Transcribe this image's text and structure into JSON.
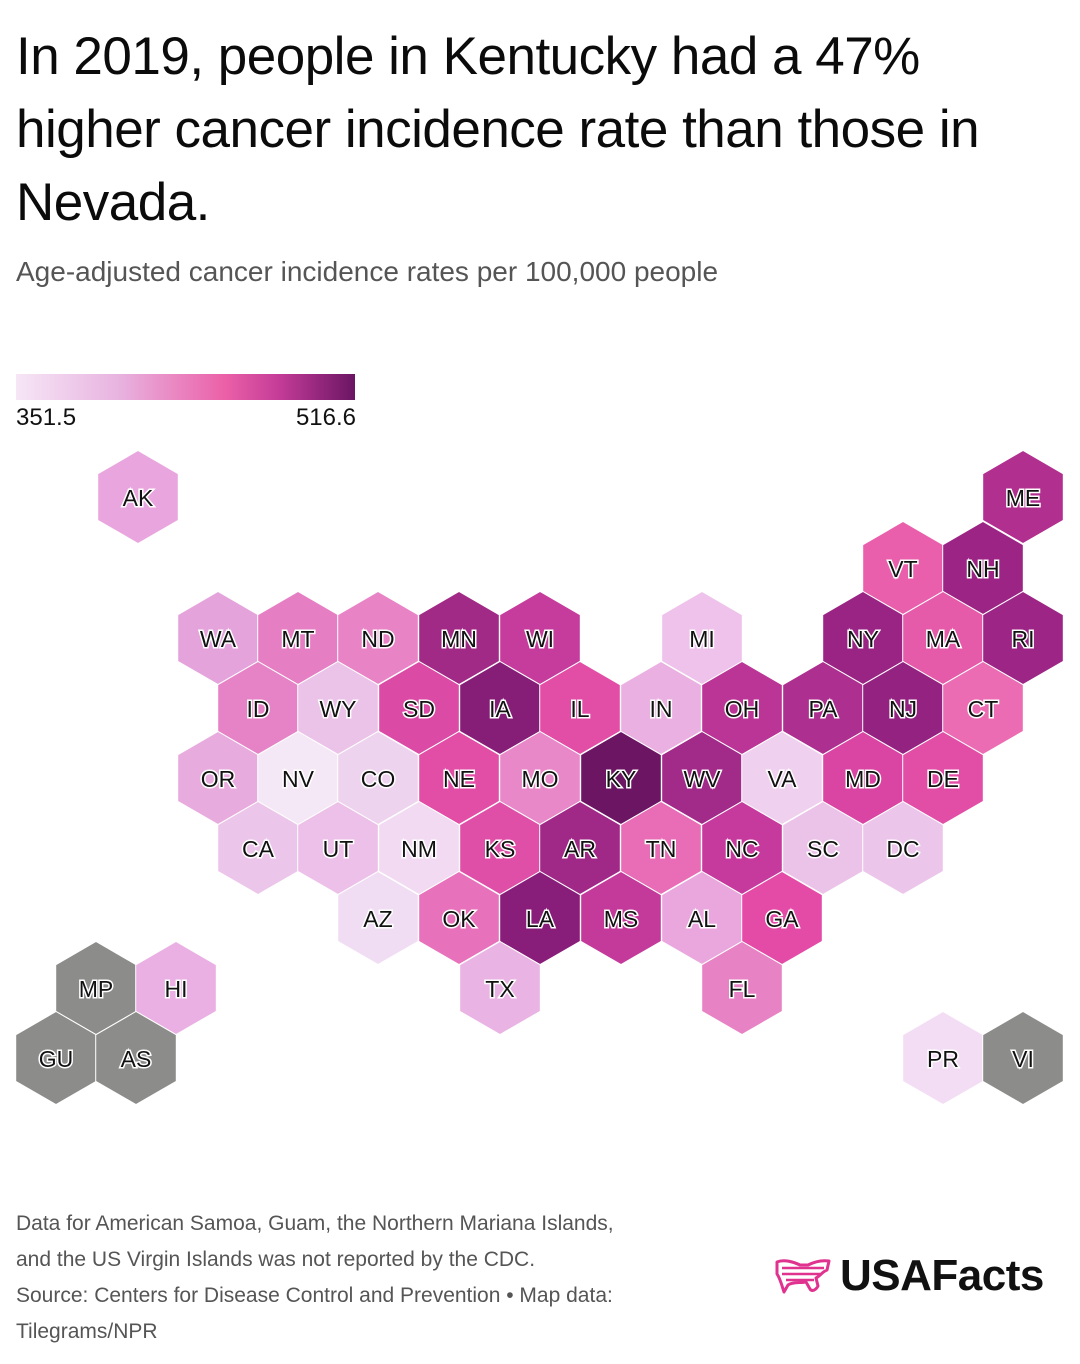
{
  "title": "In 2019, people in Kentucky had a 47% higher cancer incidence rate than those in Nevada.",
  "subtitle": "Age-adjusted cancer incidence rates per 100,000 people",
  "legend": {
    "min": "351.5",
    "max": "516.6",
    "scale_colors": [
      "#f6e6f6",
      "#e8b4e0",
      "#eb5fa7",
      "#c23b97",
      "#6b1563"
    ]
  },
  "map": {
    "no_data_color": "#8c8c8a",
    "states": [
      {
        "code": "AK",
        "color": "#e9a6de"
      },
      {
        "code": "ME",
        "color": "#b12f8f"
      },
      {
        "code": "VT",
        "color": "#ea5fab"
      },
      {
        "code": "NH",
        "color": "#9c2484"
      },
      {
        "code": "WA",
        "color": "#e5a3dc"
      },
      {
        "code": "MT",
        "color": "#e67ec3"
      },
      {
        "code": "ND",
        "color": "#e883c6"
      },
      {
        "code": "MN",
        "color": "#a12a87"
      },
      {
        "code": "WI",
        "color": "#c63c9d"
      },
      {
        "code": "MI",
        "color": "#eec2ea"
      },
      {
        "code": "NY",
        "color": "#9a2484"
      },
      {
        "code": "MA",
        "color": "#e65ba9"
      },
      {
        "code": "RI",
        "color": "#9c2585"
      },
      {
        "code": "ID",
        "color": "#e683c6"
      },
      {
        "code": "WY",
        "color": "#ecc3e8"
      },
      {
        "code": "SD",
        "color": "#db4aa5"
      },
      {
        "code": "IA",
        "color": "#861e77"
      },
      {
        "code": "IL",
        "color": "#e24ea6"
      },
      {
        "code": "IN",
        "color": "#eab0e1"
      },
      {
        "code": "OH",
        "color": "#ba3596"
      },
      {
        "code": "PA",
        "color": "#ad2f8f"
      },
      {
        "code": "NJ",
        "color": "#932281"
      },
      {
        "code": "CT",
        "color": "#eb6cb3"
      },
      {
        "code": "OR",
        "color": "#e8abde"
      },
      {
        "code": "NV",
        "color": "#f5e8f6"
      },
      {
        "code": "CO",
        "color": "#eed3ee"
      },
      {
        "code": "NE",
        "color": "#e24ea6"
      },
      {
        "code": "MO",
        "color": "#e888c8"
      },
      {
        "code": "KY",
        "color": "#6b1563"
      },
      {
        "code": "WV",
        "color": "#a22a89"
      },
      {
        "code": "VA",
        "color": "#efd0ee"
      },
      {
        "code": "MD",
        "color": "#da44a2"
      },
      {
        "code": "DE",
        "color": "#e24ea6"
      },
      {
        "code": "CA",
        "color": "#ecc6ea"
      },
      {
        "code": "UT",
        "color": "#ecc0e8"
      },
      {
        "code": "NM",
        "color": "#f2dbf2"
      },
      {
        "code": "KS",
        "color": "#e04fa7"
      },
      {
        "code": "AR",
        "color": "#a02887"
      },
      {
        "code": "TN",
        "color": "#e86db6"
      },
      {
        "code": "NC",
        "color": "#c73a9d"
      },
      {
        "code": "SC",
        "color": "#ecc3e8"
      },
      {
        "code": "DC",
        "color": "#ecc6ea"
      },
      {
        "code": "AZ",
        "color": "#f1ddf3"
      },
      {
        "code": "OK",
        "color": "#e772bb"
      },
      {
        "code": "LA",
        "color": "#881e79"
      },
      {
        "code": "MS",
        "color": "#c33a9b"
      },
      {
        "code": "AL",
        "color": "#e9a7dd"
      },
      {
        "code": "GA",
        "color": "#e44ba6"
      },
      {
        "code": "TX",
        "color": "#e9b3e3"
      },
      {
        "code": "FL",
        "color": "#e783c4"
      },
      {
        "code": "MP",
        "color": "#8c8c8a"
      },
      {
        "code": "HI",
        "color": "#eab0e3"
      },
      {
        "code": "GU",
        "color": "#8c8c8a"
      },
      {
        "code": "AS",
        "color": "#8c8c8a"
      },
      {
        "code": "PR",
        "color": "#f3ddf4"
      },
      {
        "code": "VI",
        "color": "#8c8c8a"
      }
    ]
  },
  "notes": [
    "Data for American Samoa, Guam, the Northern Mariana Islands,",
    "and the US Virgin Islands was not reported by the CDC.",
    "Source: Centers for Disease Control and Prevention • Map data:",
    "Tilegrams/NPR"
  ],
  "logo": {
    "text": "USAFacts",
    "color": "#e0338f"
  }
}
